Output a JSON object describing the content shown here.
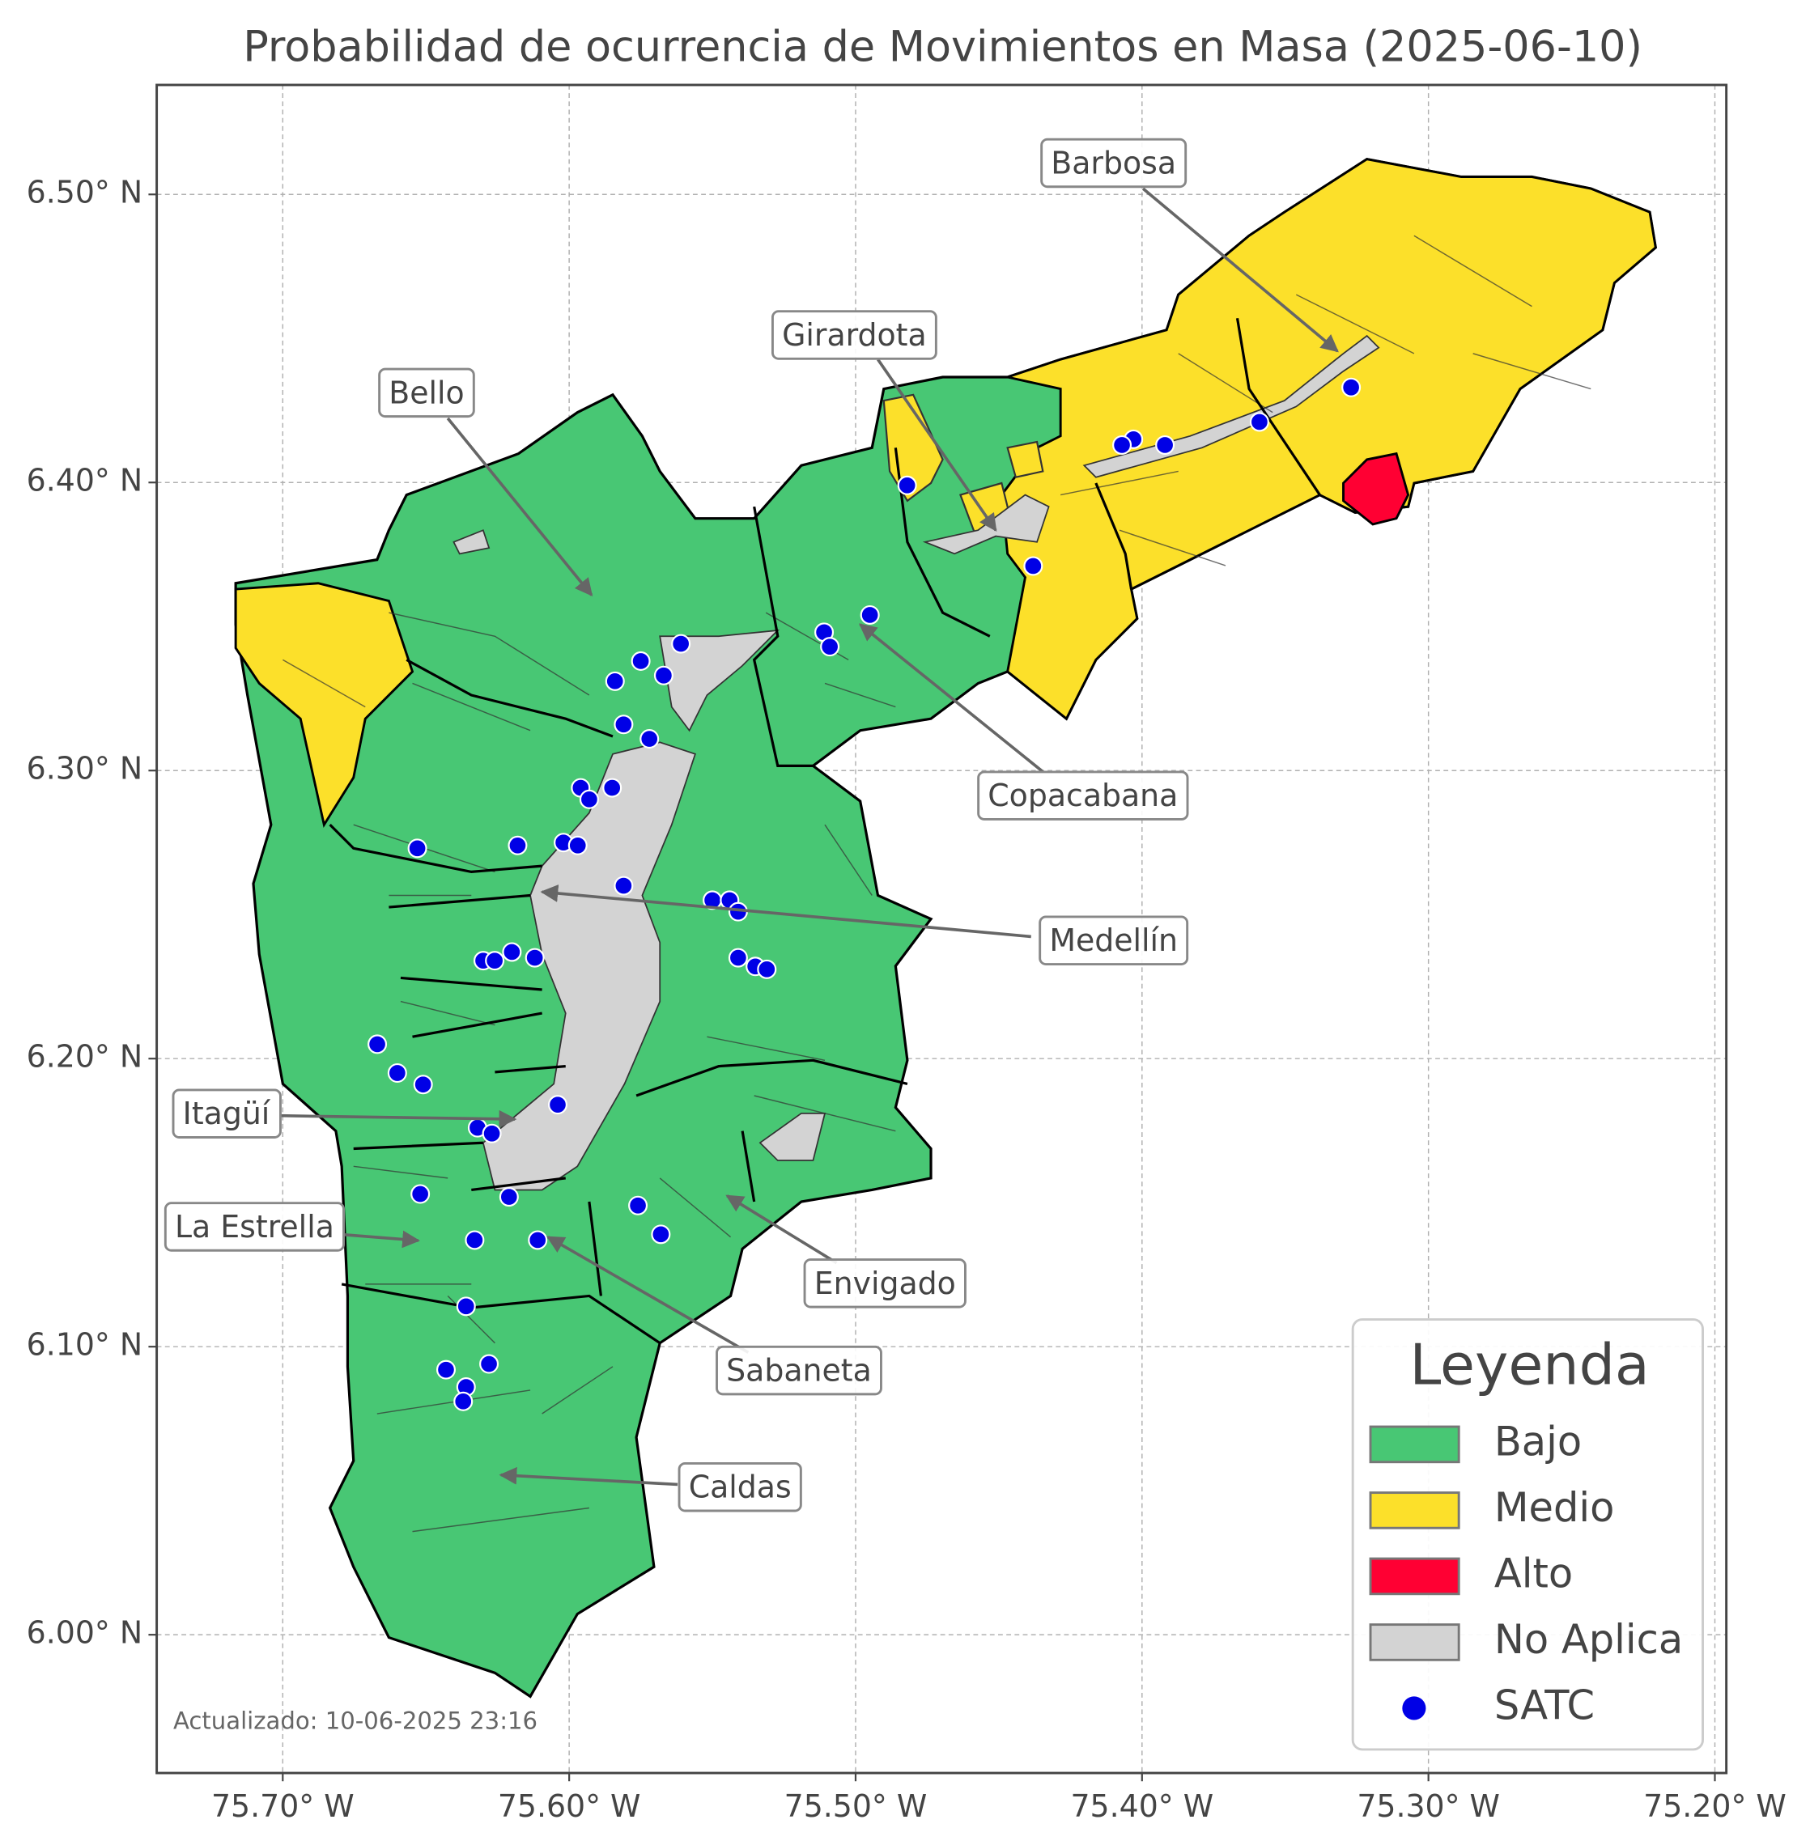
{
  "title": "Probabilidad de ocurrencia de Movimientos en Masa (2025-06-10)",
  "map": {
    "xlim": [
      -75.744,
      -75.196
    ],
    "ylim": [
      5.952,
      6.538
    ],
    "xticks": [
      {
        "value": -75.7,
        "label": "75.70° W"
      },
      {
        "value": -75.6,
        "label": "75.60° W"
      },
      {
        "value": -75.5,
        "label": "75.50° W"
      },
      {
        "value": -75.4,
        "label": "75.40° W"
      },
      {
        "value": -75.3,
        "label": "75.30° W"
      },
      {
        "value": -75.2,
        "label": "75.20° W"
      }
    ],
    "yticks": [
      {
        "value": 6.0,
        "label": "6.00° N"
      },
      {
        "value": 6.1,
        "label": "6.10° N"
      },
      {
        "value": 6.2,
        "label": "6.20° N"
      },
      {
        "value": 6.3,
        "label": "6.30° N"
      },
      {
        "value": 6.4,
        "label": "6.40° N"
      },
      {
        "value": 6.5,
        "label": "6.50° N"
      }
    ],
    "grid": true
  },
  "annotations": [
    "Barbosa",
    "Girardota",
    "Bello",
    "Copacabana",
    "Medellín",
    "Itagüí",
    "La Estrella",
    "Envigado",
    "Sabaneta",
    "Caldas"
  ],
  "legend": {
    "title": "Leyenda",
    "items": [
      {
        "name": "Bajo",
        "color": "#48c774"
      },
      {
        "name": "Medio",
        "color": "#fce02a"
      },
      {
        "name": "Alto",
        "color": "#ff0033"
      },
      {
        "name": "No Aplica",
        "color": "#d3d3d3"
      }
    ]
  },
  "satc": {
    "name": "SATC",
    "color": "#0000e6",
    "lon": [
      -75.327,
      -75.359,
      -75.392,
      -75.403,
      -75.407,
      -75.482,
      -75.438,
      -75.495,
      -75.511,
      -75.509,
      -75.561,
      -75.575,
      -75.584,
      -75.567,
      -75.581,
      -75.572,
      -75.596,
      -75.593,
      -75.585,
      -75.653,
      -75.618,
      -75.602,
      -75.597,
      -75.581,
      -75.55,
      -75.544,
      -75.541,
      -75.541,
      -75.535,
      -75.531,
      -75.62,
      -75.63,
      -75.626,
      -75.612,
      -75.667,
      -75.66,
      -75.651,
      -75.604,
      -75.632,
      -75.627,
      -75.652,
      -75.621,
      -75.576,
      -75.568,
      -75.633,
      -75.611,
      -75.636,
      -75.643,
      -75.628,
      -75.636,
      -75.637
    ],
    "lat": [
      6.433,
      6.421,
      6.413,
      6.415,
      6.413,
      6.399,
      6.371,
      6.354,
      6.348,
      6.343,
      6.344,
      6.338,
      6.331,
      6.333,
      6.316,
      6.311,
      6.294,
      6.29,
      6.294,
      6.273,
      6.274,
      6.275,
      6.274,
      6.26,
      6.255,
      6.255,
      6.251,
      6.235,
      6.232,
      6.231,
      6.237,
      6.234,
      6.234,
      6.235,
      6.205,
      6.195,
      6.191,
      6.184,
      6.176,
      6.174,
      6.153,
      6.152,
      6.149,
      6.139,
      6.137,
      6.137,
      6.114,
      6.092,
      6.094,
      6.086,
      6.081
    ]
  },
  "footer": "Actualizado: 10-06-2025 23:16"
}
